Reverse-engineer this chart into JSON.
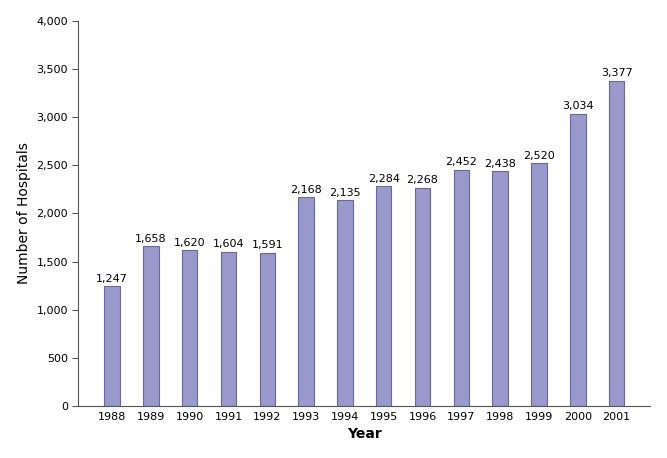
{
  "years": [
    1988,
    1989,
    1990,
    1991,
    1992,
    1993,
    1994,
    1995,
    1996,
    1997,
    1998,
    1999,
    2000,
    2001
  ],
  "values": [
    1247,
    1658,
    1620,
    1604,
    1591,
    2168,
    2135,
    2284,
    2268,
    2452,
    2438,
    2520,
    3034,
    3377
  ],
  "bar_color": "#9999cc",
  "bar_edge_color": "#6666aa",
  "xlabel": "Year",
  "ylabel": "Number of Hospitals",
  "ylim": [
    0,
    4000
  ],
  "yticks": [
    0,
    500,
    1000,
    1500,
    2000,
    2500,
    3000,
    3500,
    4000
  ],
  "background_color": "#ffffff",
  "label_fontsize": 8,
  "axis_label_fontsize": 10,
  "tick_fontsize": 8,
  "bar_width": 0.4
}
